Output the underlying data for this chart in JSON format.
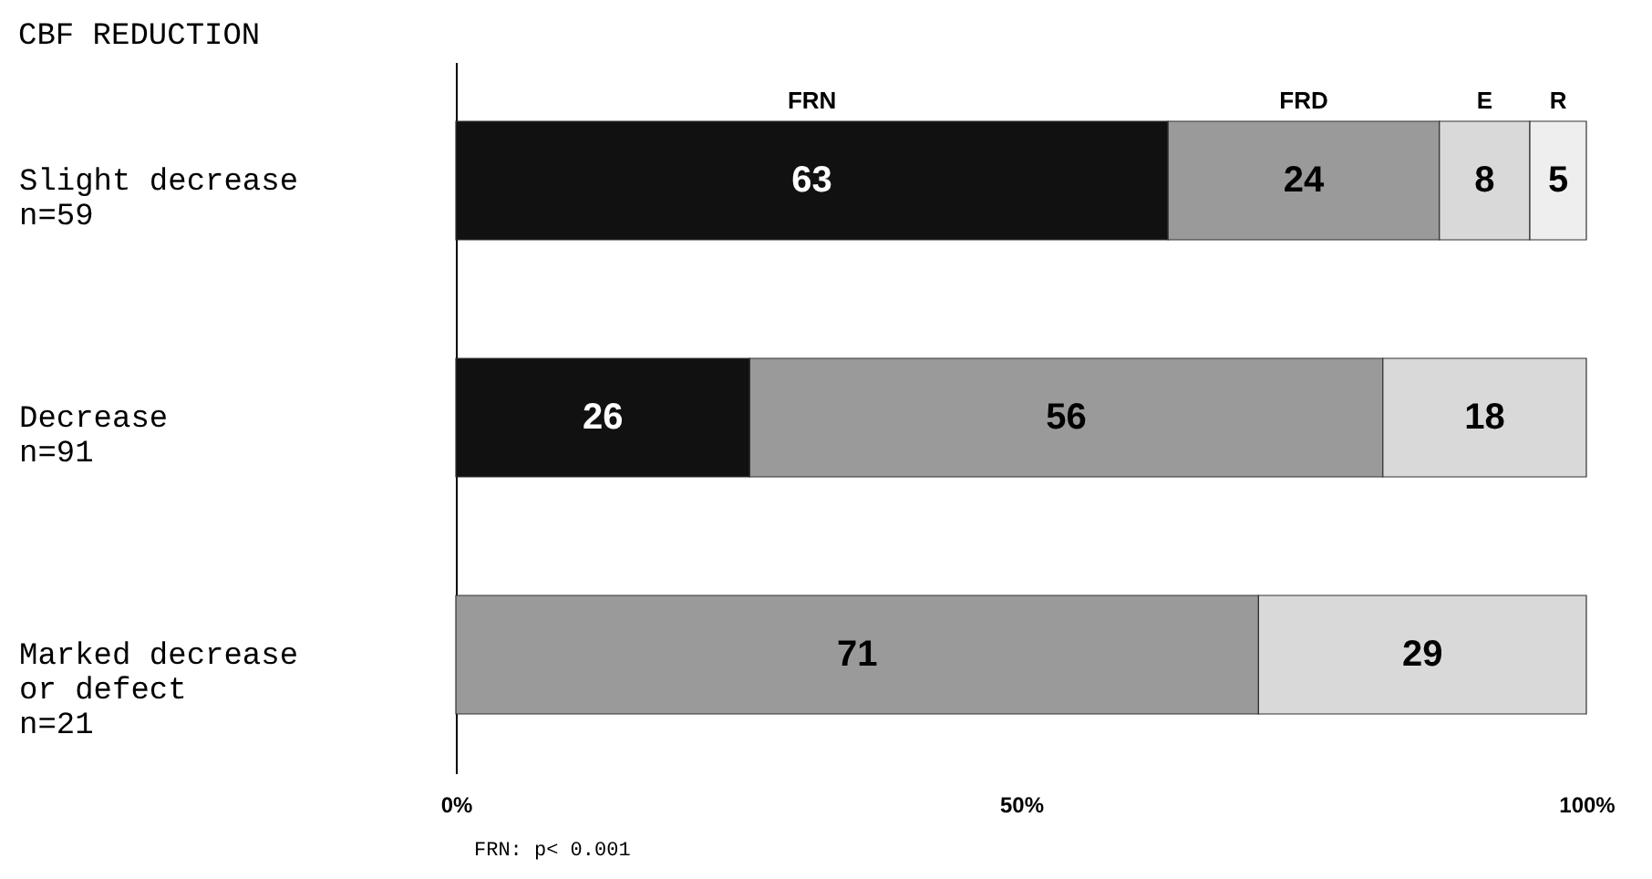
{
  "chart_data": {
    "type": "bar",
    "orientation": "horizontal",
    "stacked": true,
    "title": "CBF REDUCTION",
    "categories": [
      "Slight decrease\nn=59",
      "Decrease\nn=91",
      "Marked decrease\nor defect\nn=21"
    ],
    "series": [
      {
        "name": "FRN",
        "color": "#111111",
        "values": [
          63,
          26,
          null
        ]
      },
      {
        "name": "FRD",
        "color": "#9a9a9a",
        "values": [
          24,
          56,
          71
        ]
      },
      {
        "name": "E",
        "color": "#d9d9d9",
        "values": [
          8,
          18,
          29
        ]
      },
      {
        "name": "R",
        "color": "#eeeeee",
        "values": [
          5,
          null,
          null
        ]
      }
    ],
    "xlim": [
      0,
      100
    ],
    "xticks": [
      {
        "value": 0,
        "label": "0%"
      },
      {
        "value": 50,
        "label": "50%"
      },
      {
        "value": 100,
        "label": "100%"
      }
    ],
    "data_labels": true,
    "legend": false,
    "grid": false,
    "annotations": [
      "FRN: p< 0.001"
    ]
  }
}
